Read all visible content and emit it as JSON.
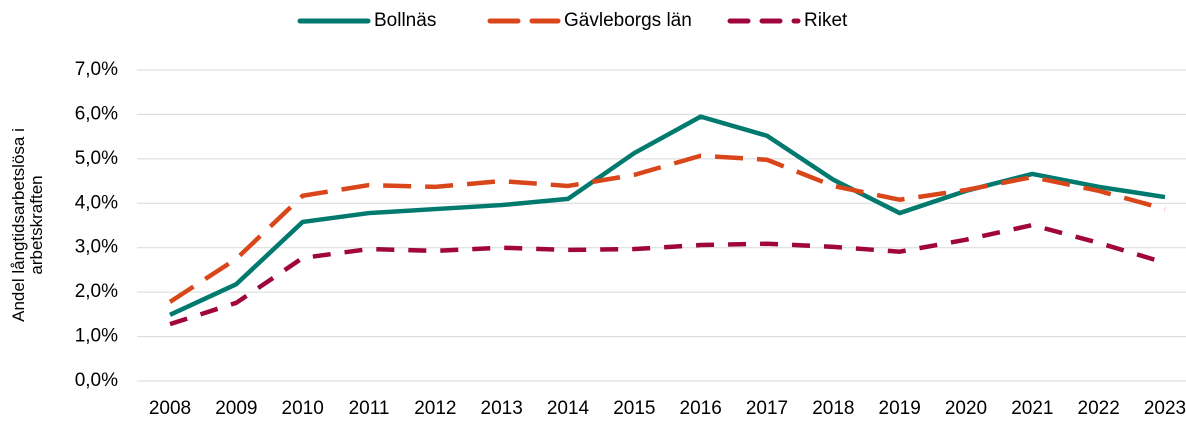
{
  "chart_data": {
    "type": "line",
    "y_label": [
      "Andel långtidsarbetslösa i",
      "arbetskraften"
    ],
    "categories": [
      "2008",
      "2009",
      "2010",
      "2011",
      "2012",
      "2013",
      "2014",
      "2015",
      "2016",
      "2017",
      "2018",
      "2019",
      "2020",
      "2021",
      "2022",
      "2023"
    ],
    "series": [
      {
        "name": "Bollnäs",
        "color": "#007a6e",
        "dash": "solid",
        "values": [
          1.49,
          2.18,
          3.58,
          3.78,
          3.87,
          3.96,
          4.1,
          5.13,
          5.95,
          5.52,
          4.53,
          3.78,
          4.28,
          4.66,
          4.37,
          4.14
        ]
      },
      {
        "name": "Gävleborgs län",
        "color": "#d9461a",
        "dash": "long",
        "values": [
          1.78,
          2.75,
          4.17,
          4.41,
          4.37,
          4.5,
          4.39,
          4.64,
          5.07,
          4.98,
          4.39,
          4.08,
          4.3,
          4.59,
          4.28,
          3.87
        ]
      },
      {
        "name": "Riket",
        "color": "#a0063d",
        "dash": "short",
        "values": [
          1.28,
          1.76,
          2.77,
          2.97,
          2.93,
          3.0,
          2.95,
          2.97,
          3.06,
          3.09,
          3.02,
          2.91,
          3.18,
          3.51,
          3.11,
          2.66
        ]
      }
    ],
    "ylim": [
      0,
      7
    ],
    "yticks": [
      {
        "value": 0,
        "label": "0,0%"
      },
      {
        "value": 1,
        "label": "1,0%"
      },
      {
        "value": 2,
        "label": "2,0%"
      },
      {
        "value": 3,
        "label": "3,0%"
      },
      {
        "value": 4,
        "label": "4,0%"
      },
      {
        "value": 5,
        "label": "5,0%"
      },
      {
        "value": 6,
        "label": "6,0%"
      },
      {
        "value": 7,
        "label": "7,0%"
      }
    ],
    "grid": true,
    "legend": "top"
  }
}
